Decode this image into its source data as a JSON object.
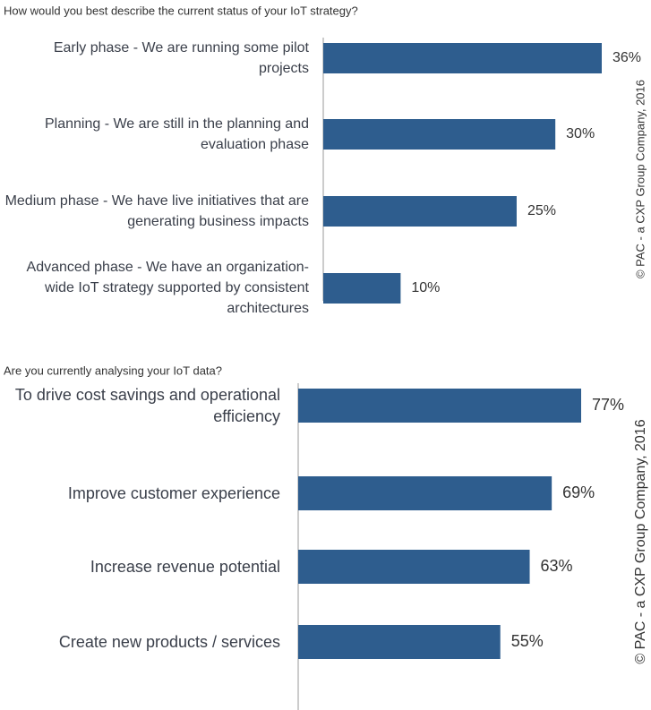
{
  "chart_data": [
    {
      "type": "bar",
      "orientation": "horizontal",
      "title": "How would you best describe the current status of your IoT strategy?",
      "categories": [
        "Early phase - We are running some pilot projects",
        "Planning - We are still in the planning and evaluation phase",
        "Medium phase - We have live initiatives that are generating business impacts",
        "Advanced phase - We have an organization-wide IoT strategy supported by consistent architectures"
      ],
      "values": [
        36,
        30,
        25,
        10
      ],
      "value_labels": [
        "36%",
        "30%",
        "25%",
        "10%"
      ],
      "color": "#2e5d8e",
      "annotation": "© PAC - a CXP Group Company, 2016"
    },
    {
      "type": "bar",
      "orientation": "horizontal",
      "title": "Are you currently analysing your IoT data?",
      "categories": [
        "To drive cost savings and operational efficiency",
        "Improve customer experience",
        "Increase revenue potential",
        "Create new products / services"
      ],
      "values": [
        77,
        69,
        63,
        55
      ],
      "value_labels": [
        "77%",
        "69%",
        "63%",
        "55%"
      ],
      "color": "#2e5d8e",
      "annotation": "© PAC - a CXP Group Company, 2016"
    }
  ]
}
